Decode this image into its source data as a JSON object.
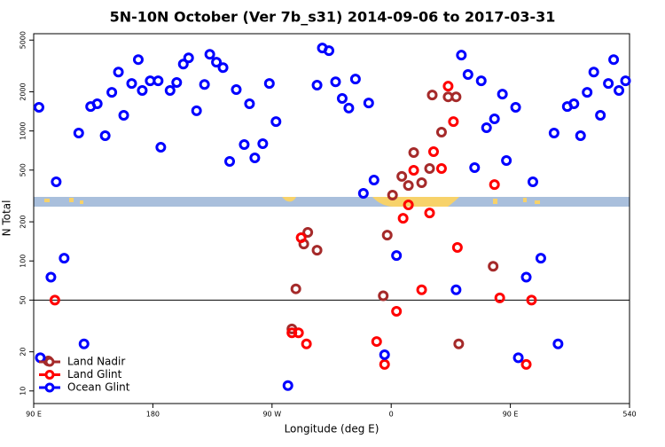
{
  "chart_data": {
    "type": "scatter",
    "title": "5N-10N October (Ver 7b_s31)   2014-09-06 to 2017-03-31",
    "x_label": "Longitude (deg E)",
    "y_label": "N Total",
    "xlim": [
      90,
      540
    ],
    "ylim": [
      8,
      5600
    ],
    "log_y": true,
    "xticks": [
      {
        "value": 90,
        "label": "90 E"
      },
      180,
      {
        "value": 270,
        "label": "90 W"
      },
      {
        "value": 360,
        "label": "0"
      },
      {
        "value": 450,
        "label": "90 E"
      },
      540
    ],
    "yticks": [
      10,
      20,
      50,
      100,
      200,
      500,
      1000,
      2000,
      5000
    ],
    "reference_line": 50,
    "legend": "bottom-left",
    "series": [
      {
        "name": "Land Nadir",
        "color": "#a52a2a",
        "x": [
          101,
          285,
          288,
          294,
          297,
          304,
          354,
          357,
          361,
          368,
          373,
          377,
          383,
          389,
          391,
          398,
          403,
          409,
          411,
          437
        ],
        "values": [
          17,
          30,
          61,
          135,
          166,
          121,
          54,
          158,
          321,
          447,
          381,
          682,
          400,
          514,
          1890,
          979,
          1830,
          1830,
          23,
          91
        ]
      },
      {
        "name": "Land Glint",
        "color": "#ff0000",
        "x": [
          106,
          349,
          355,
          364,
          369,
          373,
          377,
          383,
          389,
          392,
          398,
          403,
          407,
          410,
          438,
          442,
          462,
          466,
          292,
          285,
          290,
          296
        ],
        "values": [
          50,
          24,
          16,
          41,
          213,
          270,
          498,
          60,
          234,
          693,
          514,
          2210,
          1180,
          127,
          387,
          52,
          16,
          50,
          151,
          28,
          28,
          23
        ]
      },
      {
        "name": "Ocean Glint",
        "color": "#0000ff",
        "x": [
          94,
          107,
          103,
          113,
          124,
          128,
          133,
          138,
          144,
          149,
          154,
          158,
          164,
          169,
          172,
          178,
          184,
          186,
          193,
          198,
          203,
          207,
          213,
          219,
          223,
          228,
          233,
          238,
          243,
          249,
          253,
          257,
          263,
          268,
          273,
          282,
          304,
          308,
          313,
          318,
          323,
          328,
          333,
          339,
          343,
          347,
          355,
          364,
          409,
          413,
          418,
          423,
          428,
          432,
          438,
          444,
          447,
          454,
          456,
          462,
          467,
          473,
          483,
          486,
          493,
          498,
          503,
          508,
          513,
          518,
          524,
          528,
          532,
          537,
          95
        ],
        "values": [
          1520,
          406,
          75,
          105,
          964,
          23,
          1540,
          1620,
          919,
          1980,
          2840,
          1320,
          2320,
          3540,
          2050,
          2430,
          2430,
          749,
          2050,
          2360,
          3270,
          3650,
          1430,
          2280,
          3890,
          3380,
          3070,
          583,
          2080,
          786,
          1620,
          621,
          798,
          2320,
          1180,
          11,
          2250,
          4350,
          4150,
          2390,
          1780,
          1500,
          2510,
          331,
          1640,
          419,
          19,
          110,
          60,
          3830,
          2720,
          522,
          2430,
          1060,
          1240,
          1920,
          592,
          1520,
          18,
          75,
          406,
          105,
          964,
          23,
          1540,
          1620,
          919,
          1980,
          2840,
          1320,
          2320,
          3540,
          2050,
          2430,
          18
        ]
      }
    ]
  }
}
